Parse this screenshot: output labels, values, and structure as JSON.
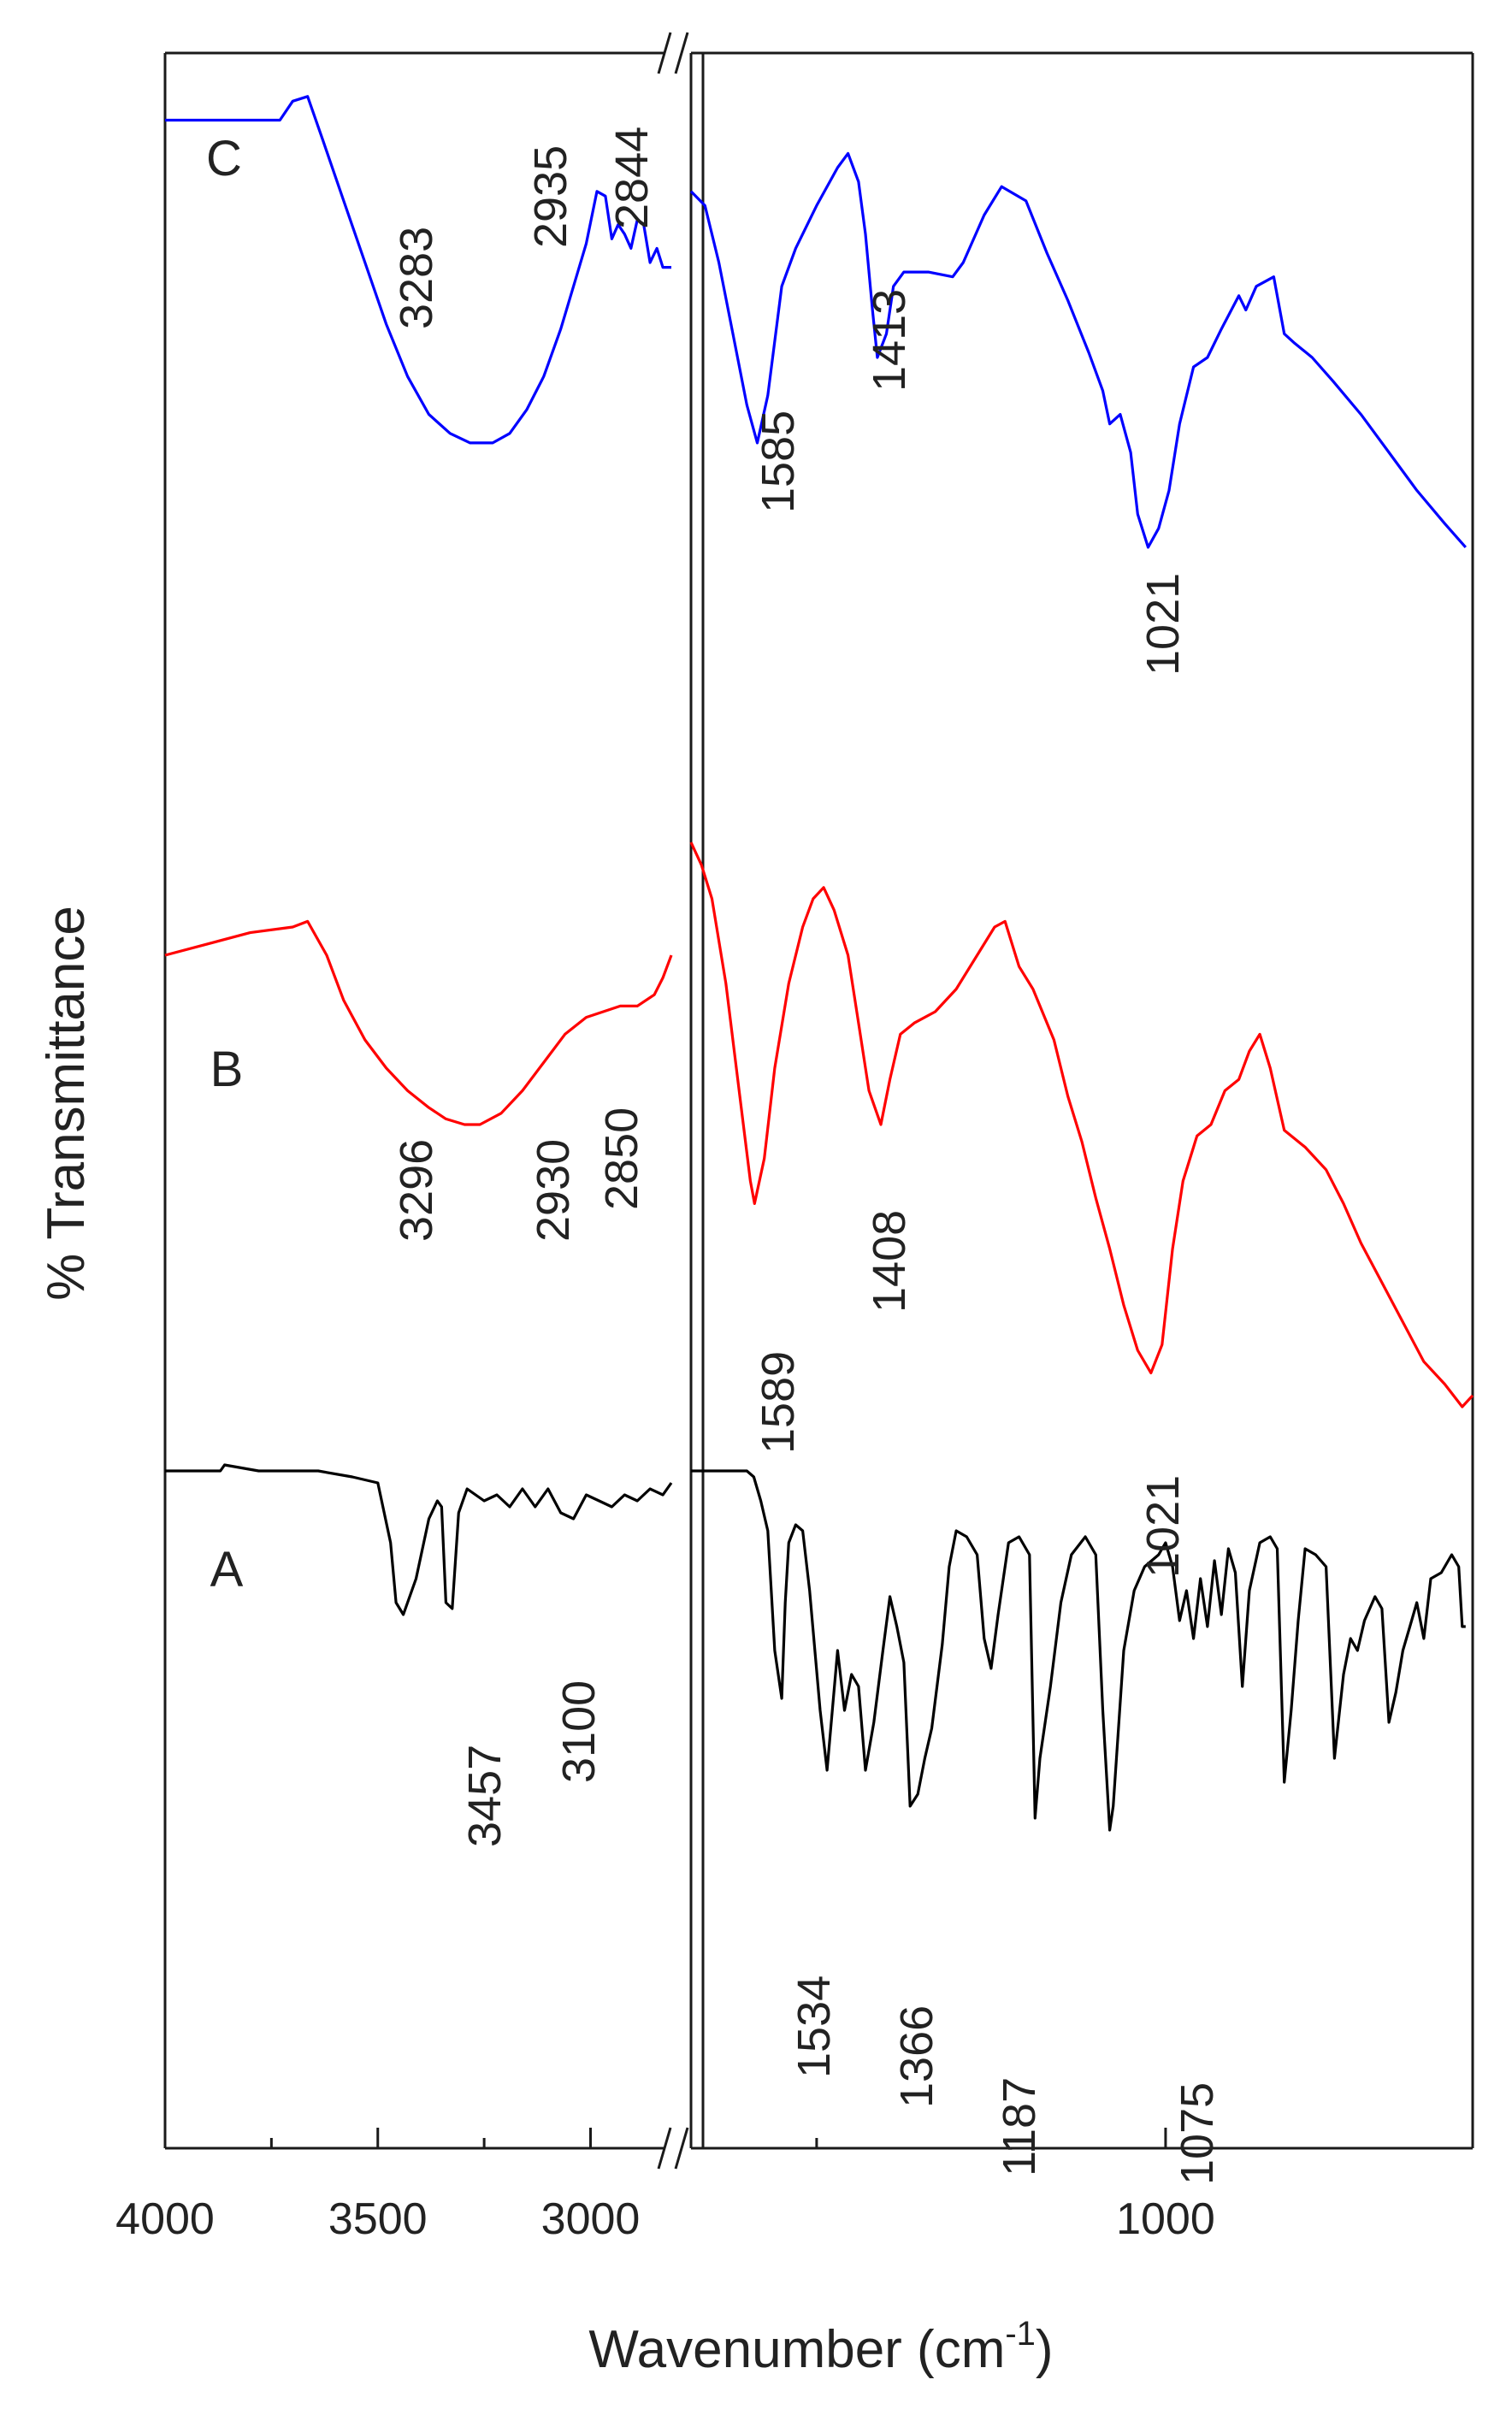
{
  "chart_data": {
    "type": "line",
    "title": "",
    "xlabel": "Wavenumber (cm",
    "xlabel_superscript": "-1",
    "xlabel_close": ")",
    "ylabel": "% Transmittance",
    "x_broken": true,
    "xlim_left": [
      4000,
      2800
    ],
    "xlim_right": [
      1680,
      560
    ],
    "x_ticks_left": [
      "4000",
      "3500",
      "3000"
    ],
    "x_ticks_right": [
      "1000"
    ],
    "grid": false,
    "series": [
      {
        "name": "C",
        "color": "#0000ff",
        "left_points": [
          [
            4000,
            90
          ],
          [
            3730,
            90
          ],
          [
            3700,
            94
          ],
          [
            3665,
            95
          ],
          [
            3630,
            86
          ],
          [
            3580,
            73
          ],
          [
            3530,
            60
          ],
          [
            3480,
            47
          ],
          [
            3430,
            36
          ],
          [
            3380,
            28
          ],
          [
            3330,
            24
          ],
          [
            3283,
            22
          ],
          [
            3230,
            22
          ],
          [
            3190,
            24
          ],
          [
            3150,
            29
          ],
          [
            3110,
            36
          ],
          [
            3070,
            46
          ],
          [
            3040,
            55
          ],
          [
            3010,
            64
          ],
          [
            2985,
            75
          ],
          [
            2965,
            74
          ],
          [
            2950,
            65
          ],
          [
            2935,
            68
          ],
          [
            2920,
            66
          ],
          [
            2905,
            63
          ],
          [
            2890,
            69
          ],
          [
            2875,
            68
          ],
          [
            2860,
            60
          ],
          [
            2844,
            63
          ],
          [
            2830,
            59
          ],
          [
            2810,
            59
          ]
        ],
        "right_points": [
          [
            1680,
            75
          ],
          [
            1660,
            72
          ],
          [
            1640,
            60
          ],
          [
            1620,
            45
          ],
          [
            1600,
            30
          ],
          [
            1585,
            22
          ],
          [
            1570,
            32
          ],
          [
            1550,
            55
          ],
          [
            1530,
            63
          ],
          [
            1500,
            72
          ],
          [
            1470,
            80
          ],
          [
            1455,
            83
          ],
          [
            1440,
            77
          ],
          [
            1430,
            66
          ],
          [
            1420,
            50
          ],
          [
            1413,
            40
          ],
          [
            1400,
            45
          ],
          [
            1390,
            55
          ],
          [
            1375,
            58
          ],
          [
            1340,
            58
          ],
          [
            1305,
            57
          ],
          [
            1290,
            60
          ],
          [
            1260,
            70
          ],
          [
            1235,
            76
          ],
          [
            1200,
            73
          ],
          [
            1170,
            62
          ],
          [
            1140,
            52
          ],
          [
            1110,
            41
          ],
          [
            1090,
            33
          ],
          [
            1080,
            26
          ],
          [
            1065,
            28
          ],
          [
            1050,
            20
          ],
          [
            1040,
            7
          ],
          [
            1025,
            0
          ],
          [
            1010,
            4
          ],
          [
            995,
            12
          ],
          [
            980,
            26
          ],
          [
            960,
            38
          ],
          [
            940,
            40
          ],
          [
            920,
            46
          ],
          [
            895,
            53
          ],
          [
            885,
            50
          ],
          [
            870,
            55
          ],
          [
            845,
            57
          ],
          [
            830,
            45
          ],
          [
            815,
            43
          ],
          [
            790,
            40
          ],
          [
            760,
            35
          ],
          [
            720,
            28
          ],
          [
            680,
            20
          ],
          [
            640,
            12
          ],
          [
            600,
            5
          ],
          [
            570,
            0
          ]
        ],
        "peaks": [
          "3283",
          "2935",
          "2844",
          "1585",
          "1413",
          "1021"
        ]
      },
      {
        "name": "B",
        "color": "#ff0000",
        "left_points": [
          [
            4000,
            80
          ],
          [
            3900,
            82
          ],
          [
            3800,
            84
          ],
          [
            3700,
            85
          ],
          [
            3665,
            86
          ],
          [
            3620,
            80
          ],
          [
            3580,
            72
          ],
          [
            3530,
            65
          ],
          [
            3480,
            60
          ],
          [
            3430,
            56
          ],
          [
            3380,
            53
          ],
          [
            3340,
            51
          ],
          [
            3296,
            50
          ],
          [
            3260,
            50
          ],
          [
            3210,
            52
          ],
          [
            3160,
            56
          ],
          [
            3110,
            61
          ],
          [
            3060,
            66
          ],
          [
            3010,
            69
          ],
          [
            2970,
            70
          ],
          [
            2930,
            71
          ],
          [
            2890,
            71
          ],
          [
            2850,
            73
          ],
          [
            2830,
            76
          ],
          [
            2810,
            80
          ]
        ],
        "right_points": [
          [
            1680,
            100
          ],
          [
            1665,
            96
          ],
          [
            1650,
            90
          ],
          [
            1630,
            75
          ],
          [
            1610,
            55
          ],
          [
            1595,
            40
          ],
          [
            1589,
            36
          ],
          [
            1575,
            44
          ],
          [
            1560,
            60
          ],
          [
            1540,
            75
          ],
          [
            1520,
            85
          ],
          [
            1505,
            90
          ],
          [
            1490,
            92
          ],
          [
            1475,
            88
          ],
          [
            1455,
            80
          ],
          [
            1440,
            68
          ],
          [
            1425,
            56
          ],
          [
            1408,
            50
          ],
          [
            1395,
            58
          ],
          [
            1380,
            66
          ],
          [
            1360,
            68
          ],
          [
            1330,
            70
          ],
          [
            1300,
            74
          ],
          [
            1270,
            80
          ],
          [
            1245,
            85
          ],
          [
            1230,
            86
          ],
          [
            1210,
            78
          ],
          [
            1190,
            74
          ],
          [
            1160,
            65
          ],
          [
            1140,
            55
          ],
          [
            1120,
            47
          ],
          [
            1100,
            37
          ],
          [
            1080,
            28
          ],
          [
            1060,
            18
          ],
          [
            1040,
            10
          ],
          [
            1021,
            6
          ],
          [
            1005,
            11
          ],
          [
            990,
            28
          ],
          [
            975,
            40
          ],
          [
            955,
            48
          ],
          [
            935,
            50
          ],
          [
            915,
            56
          ],
          [
            895,
            58
          ],
          [
            880,
            63
          ],
          [
            865,
            66
          ],
          [
            850,
            60
          ],
          [
            830,
            49
          ],
          [
            800,
            46
          ],
          [
            770,
            42
          ],
          [
            745,
            36
          ],
          [
            720,
            29
          ],
          [
            690,
            22
          ],
          [
            660,
            15
          ],
          [
            630,
            8
          ],
          [
            600,
            4
          ],
          [
            575,
            0
          ],
          [
            560,
            2
          ]
        ],
        "peaks": [
          "3296",
          "2930",
          "2850",
          "1589",
          "1408",
          "1021"
        ]
      },
      {
        "name": "A",
        "color": "#000000",
        "left_points": [
          [
            4000,
            100
          ],
          [
            3870,
            100
          ],
          [
            3860,
            101
          ],
          [
            3780,
            100
          ],
          [
            3640,
            100
          ],
          [
            3560,
            99
          ],
          [
            3500,
            98
          ],
          [
            3470,
            88
          ],
          [
            3457,
            78
          ],
          [
            3440,
            76
          ],
          [
            3410,
            82
          ],
          [
            3380,
            92
          ],
          [
            3360,
            95
          ],
          [
            3350,
            94
          ],
          [
            3340,
            78
          ],
          [
            3325,
            77
          ],
          [
            3310,
            93
          ],
          [
            3290,
            97
          ],
          [
            3250,
            95
          ],
          [
            3220,
            96
          ],
          [
            3190,
            94
          ],
          [
            3160,
            97
          ],
          [
            3130,
            94
          ],
          [
            3100,
            97
          ],
          [
            3070,
            93
          ],
          [
            3040,
            92
          ],
          [
            3010,
            96
          ],
          [
            2980,
            95
          ],
          [
            2950,
            94
          ],
          [
            2920,
            96
          ],
          [
            2890,
            95
          ],
          [
            2860,
            97
          ],
          [
            2830,
            96
          ],
          [
            2810,
            98
          ]
        ],
        "right_points": [
          [
            1680,
            100
          ],
          [
            1600,
            100
          ],
          [
            1590,
            99
          ],
          [
            1580,
            95
          ],
          [
            1570,
            90
          ],
          [
            1560,
            70
          ],
          [
            1550,
            62
          ],
          [
            1545,
            78
          ],
          [
            1540,
            88
          ],
          [
            1530,
            91
          ],
          [
            1520,
            90
          ],
          [
            1510,
            80
          ],
          [
            1495,
            60
          ],
          [
            1485,
            50
          ],
          [
            1470,
            70
          ],
          [
            1460,
            60
          ],
          [
            1450,
            66
          ],
          [
            1440,
            64
          ],
          [
            1430,
            50
          ],
          [
            1418,
            58
          ],
          [
            1405,
            70
          ],
          [
            1395,
            79
          ],
          [
            1385,
            74
          ],
          [
            1375,
            68
          ],
          [
            1366,
            44
          ],
          [
            1355,
            46
          ],
          [
            1345,
            52
          ],
          [
            1335,
            57
          ],
          [
            1320,
            71
          ],
          [
            1310,
            84
          ],
          [
            1300,
            90
          ],
          [
            1285,
            89
          ],
          [
            1270,
            86
          ],
          [
            1260,
            72
          ],
          [
            1250,
            67
          ],
          [
            1240,
            76
          ],
          [
            1225,
            88
          ],
          [
            1210,
            89
          ],
          [
            1195,
            86
          ],
          [
            1187,
            42
          ],
          [
            1180,
            52
          ],
          [
            1165,
            64
          ],
          [
            1150,
            78
          ],
          [
            1135,
            86
          ],
          [
            1115,
            89
          ],
          [
            1100,
            86
          ],
          [
            1090,
            60
          ],
          [
            1080,
            40
          ],
          [
            1075,
            44
          ],
          [
            1060,
            70
          ],
          [
            1045,
            80
          ],
          [
            1030,
            84
          ],
          [
            1010,
            86
          ],
          [
            1000,
            88
          ],
          [
            990,
            84
          ],
          [
            980,
            75
          ],
          [
            970,
            80
          ],
          [
            960,
            72
          ],
          [
            950,
            82
          ],
          [
            940,
            74
          ],
          [
            930,
            85
          ],
          [
            920,
            76
          ],
          [
            910,
            87
          ],
          [
            900,
            83
          ],
          [
            890,
            64
          ],
          [
            880,
            80
          ],
          [
            865,
            88
          ],
          [
            850,
            89
          ],
          [
            840,
            87
          ],
          [
            830,
            48
          ],
          [
            820,
            60
          ],
          [
            810,
            75
          ],
          [
            800,
            87
          ],
          [
            785,
            86
          ],
          [
            770,
            84
          ],
          [
            758,
            52
          ],
          [
            745,
            66
          ],
          [
            735,
            72
          ],
          [
            725,
            70
          ],
          [
            715,
            75
          ],
          [
            700,
            79
          ],
          [
            690,
            77
          ],
          [
            680,
            58
          ],
          [
            670,
            63
          ],
          [
            660,
            70
          ],
          [
            650,
            74
          ],
          [
            640,
            78
          ],
          [
            630,
            72
          ],
          [
            620,
            82
          ],
          [
            605,
            83
          ],
          [
            590,
            86
          ],
          [
            580,
            84
          ],
          [
            575,
            74
          ],
          [
            570,
            74
          ]
        ],
        "peaks": [
          "3457",
          "3100",
          "1534",
          "1366",
          "1187",
          "1075"
        ]
      }
    ]
  }
}
